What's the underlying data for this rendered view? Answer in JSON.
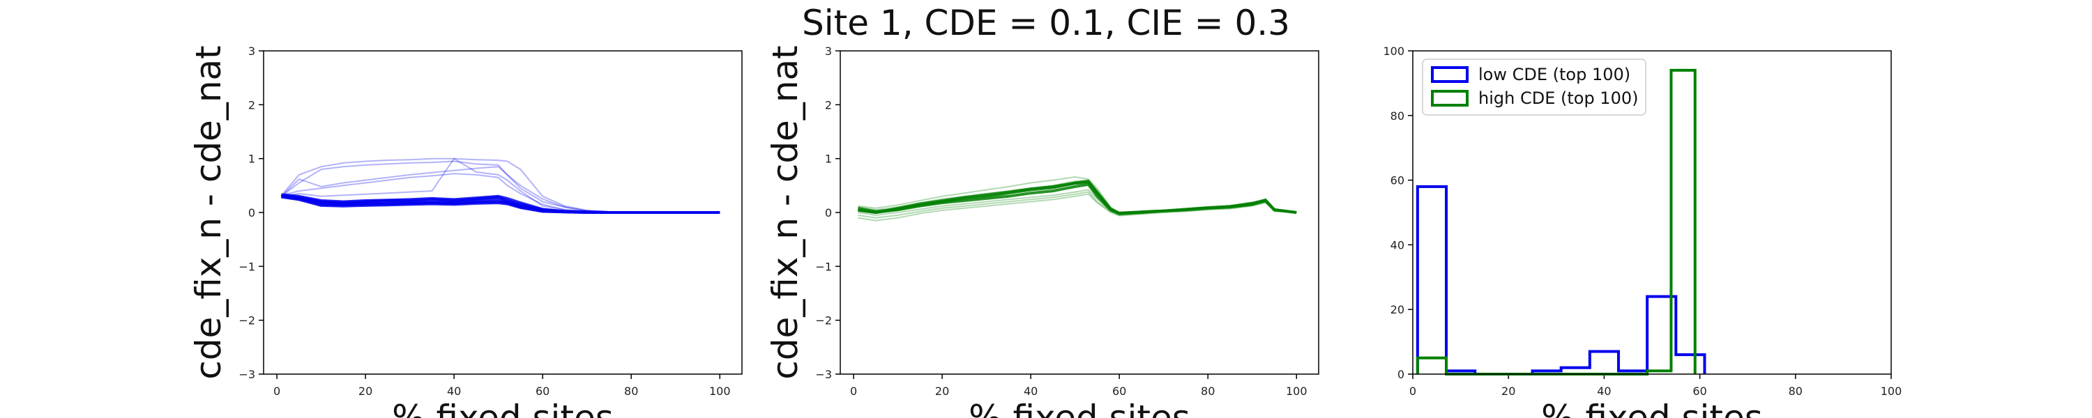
{
  "figure": {
    "title": "Site 1, CDE = 0.1, CIE = 0.3"
  },
  "colors": {
    "blue": "#0000ee",
    "green": "#008000",
    "axis": "#000000"
  },
  "chart_data": [
    {
      "type": "line",
      "color_name": "blue",
      "xlabel": "% fixed sites",
      "ylabel": "cde_fix_n - cde_nat",
      "xlim": [
        -3,
        105
      ],
      "ylim": [
        -3,
        3
      ],
      "xticks": [
        0,
        20,
        40,
        60,
        80,
        100
      ],
      "yticks": [
        -3,
        -2,
        -1,
        0,
        1,
        2,
        3
      ],
      "x": [
        1,
        5,
        10,
        15,
        20,
        25,
        30,
        35,
        40,
        45,
        50,
        52,
        55,
        60,
        65,
        70,
        75,
        80,
        85,
        90,
        95,
        100
      ],
      "series": [
        {
          "values": [
            0.32,
            0.28,
            0.2,
            0.18,
            0.2,
            0.22,
            0.22,
            0.24,
            0.22,
            0.25,
            0.28,
            0.22,
            0.15,
            0.05,
            0.02,
            0.01,
            0.0,
            0.0,
            0.0,
            0.0,
            0.0,
            0.0
          ]
        },
        {
          "values": [
            0.3,
            0.25,
            0.18,
            0.16,
            0.17,
            0.18,
            0.19,
            0.2,
            0.19,
            0.22,
            0.24,
            0.2,
            0.12,
            0.04,
            0.02,
            0.01,
            0.0,
            0.0,
            0.0,
            0.0,
            0.0,
            0.0
          ]
        },
        {
          "values": [
            0.31,
            0.26,
            0.15,
            0.14,
            0.15,
            0.16,
            0.17,
            0.18,
            0.17,
            0.19,
            0.2,
            0.18,
            0.1,
            0.03,
            0.01,
            0.0,
            0.0,
            0.0,
            0.0,
            0.0,
            0.0,
            0.0
          ]
        },
        {
          "values": [
            0.29,
            0.24,
            0.13,
            0.12,
            0.13,
            0.14,
            0.15,
            0.16,
            0.15,
            0.17,
            0.18,
            0.16,
            0.09,
            0.02,
            0.01,
            0.0,
            0.0,
            0.0,
            0.0,
            0.0,
            0.0,
            0.0
          ]
        },
        {
          "values": [
            0.33,
            0.3,
            0.22,
            0.2,
            0.22,
            0.23,
            0.24,
            0.26,
            0.24,
            0.27,
            0.3,
            0.26,
            0.18,
            0.06,
            0.02,
            0.01,
            0.0,
            0.0,
            0.0,
            0.0,
            0.0,
            0.0
          ]
        },
        {
          "values": [
            0.3,
            0.62,
            0.48,
            0.55,
            0.6,
            0.65,
            0.7,
            0.74,
            0.78,
            0.82,
            0.85,
            0.7,
            0.45,
            0.2,
            0.1,
            0.03,
            0.01,
            0.0,
            0.0,
            0.0,
            0.0,
            0.0
          ]
        },
        {
          "values": [
            0.31,
            0.7,
            0.85,
            0.92,
            0.95,
            0.97,
            0.98,
            1.0,
            1.0,
            0.98,
            0.97,
            0.95,
            0.8,
            0.3,
            0.12,
            0.04,
            0.01,
            0.0,
            0.0,
            0.0,
            0.0,
            0.0
          ]
        },
        {
          "values": [
            0.3,
            0.55,
            0.8,
            0.85,
            0.88,
            0.9,
            0.92,
            0.93,
            0.95,
            0.9,
            0.88,
            0.7,
            0.5,
            0.25,
            0.1,
            0.03,
            0.01,
            0.0,
            0.0,
            0.0,
            0.0,
            0.0
          ]
        },
        {
          "values": [
            0.32,
            0.4,
            0.45,
            0.5,
            0.55,
            0.6,
            0.65,
            0.68,
            0.72,
            0.7,
            0.65,
            0.5,
            0.35,
            0.15,
            0.05,
            0.02,
            0.0,
            0.0,
            0.0,
            0.0,
            0.0,
            0.0
          ]
        },
        {
          "values": [
            0.3,
            0.35,
            0.3,
            0.32,
            0.34,
            0.36,
            0.38,
            0.4,
            1.0,
            0.75,
            0.7,
            0.6,
            0.4,
            0.12,
            0.05,
            0.01,
            0.0,
            0.0,
            0.0,
            0.0,
            0.0,
            0.0
          ]
        }
      ]
    },
    {
      "type": "line",
      "color_name": "green",
      "xlabel": "% fixed sites",
      "ylabel": "cde_fix_n - cde_nat",
      "xlim": [
        -3,
        105
      ],
      "ylim": [
        -3,
        3
      ],
      "xticks": [
        0,
        20,
        40,
        60,
        80,
        100
      ],
      "yticks": [
        -3,
        -2,
        -1,
        0,
        1,
        2,
        3
      ],
      "x": [
        1,
        5,
        10,
        15,
        20,
        25,
        30,
        35,
        40,
        45,
        50,
        53,
        55,
        58,
        60,
        65,
        70,
        75,
        80,
        85,
        90,
        93,
        95,
        100
      ],
      "series": [
        {
          "values": [
            0.05,
            0.0,
            0.05,
            0.12,
            0.18,
            0.22,
            0.26,
            0.3,
            0.36,
            0.4,
            0.48,
            0.52,
            0.3,
            0.05,
            -0.02,
            0.0,
            0.03,
            0.05,
            0.08,
            0.1,
            0.15,
            0.22,
            0.05,
            0.0
          ]
        },
        {
          "values": [
            0.1,
            0.05,
            0.1,
            0.18,
            0.25,
            0.3,
            0.35,
            0.4,
            0.45,
            0.5,
            0.58,
            0.6,
            0.4,
            0.08,
            0.0,
            0.02,
            0.04,
            0.06,
            0.09,
            0.12,
            0.18,
            0.24,
            0.06,
            0.0
          ]
        },
        {
          "values": [
            0.0,
            -0.05,
            0.0,
            0.06,
            0.12,
            0.16,
            0.2,
            0.24,
            0.28,
            0.32,
            0.38,
            0.42,
            0.25,
            0.03,
            -0.04,
            -0.01,
            0.02,
            0.04,
            0.07,
            0.09,
            0.14,
            0.2,
            0.04,
            0.0
          ]
        },
        {
          "values": [
            0.08,
            0.02,
            0.06,
            0.14,
            0.2,
            0.26,
            0.3,
            0.36,
            0.42,
            0.46,
            0.54,
            0.56,
            0.35,
            0.06,
            -0.01,
            0.01,
            0.03,
            0.05,
            0.08,
            0.11,
            0.16,
            0.23,
            0.05,
            0.0
          ]
        },
        {
          "values": [
            -0.05,
            -0.1,
            -0.05,
            0.02,
            0.08,
            0.12,
            0.16,
            0.2,
            0.24,
            0.28,
            0.34,
            0.38,
            0.2,
            0.02,
            -0.05,
            -0.02,
            0.01,
            0.03,
            0.06,
            0.08,
            0.13,
            0.19,
            0.03,
            0.0
          ]
        },
        {
          "values": [
            0.12,
            0.08,
            0.14,
            0.22,
            0.3,
            0.36,
            0.42,
            0.48,
            0.55,
            0.6,
            0.66,
            0.62,
            0.45,
            0.1,
            0.0,
            0.02,
            0.04,
            0.07,
            0.1,
            0.13,
            0.19,
            0.25,
            0.07,
            0.0
          ]
        },
        {
          "values": [
            -0.1,
            -0.15,
            -0.1,
            -0.02,
            0.04,
            0.08,
            0.12,
            0.16,
            0.2,
            0.24,
            0.3,
            0.34,
            0.18,
            0.0,
            -0.06,
            -0.03,
            0.0,
            0.02,
            0.05,
            0.07,
            0.12,
            0.18,
            0.02,
            0.0
          ]
        },
        {
          "values": [
            0.04,
            0.0,
            0.08,
            0.16,
            0.22,
            0.28,
            0.33,
            0.38,
            0.44,
            0.48,
            0.55,
            0.58,
            0.38,
            0.07,
            -0.02,
            0.01,
            0.03,
            0.06,
            0.09,
            0.11,
            0.17,
            0.22,
            0.05,
            0.0
          ]
        }
      ]
    },
    {
      "type": "histogram",
      "xlabel": "% fixed sites",
      "ylabel": "",
      "xlim": [
        0,
        100
      ],
      "ylim": [
        0,
        100
      ],
      "xticks": [
        0,
        20,
        40,
        60,
        80,
        100
      ],
      "yticks": [
        0,
        20,
        40,
        60,
        80,
        100
      ],
      "legend_position": "top-left",
      "series": [
        {
          "name": "low CDE (top 100)",
          "color_name": "blue",
          "bin_edges": [
            1,
            7,
            13,
            19,
            25,
            31,
            37,
            43,
            49,
            55,
            61
          ],
          "counts": [
            58,
            1,
            0,
            0,
            1,
            2,
            7,
            1,
            24,
            6
          ]
        },
        {
          "name": "high CDE (top 100)",
          "color_name": "green",
          "bin_edges": [
            1,
            7,
            13,
            19,
            25,
            31,
            37,
            43,
            49,
            54,
            59
          ],
          "counts": [
            5,
            0,
            0,
            0,
            0,
            0,
            0,
            0,
            1,
            94
          ]
        }
      ]
    }
  ]
}
